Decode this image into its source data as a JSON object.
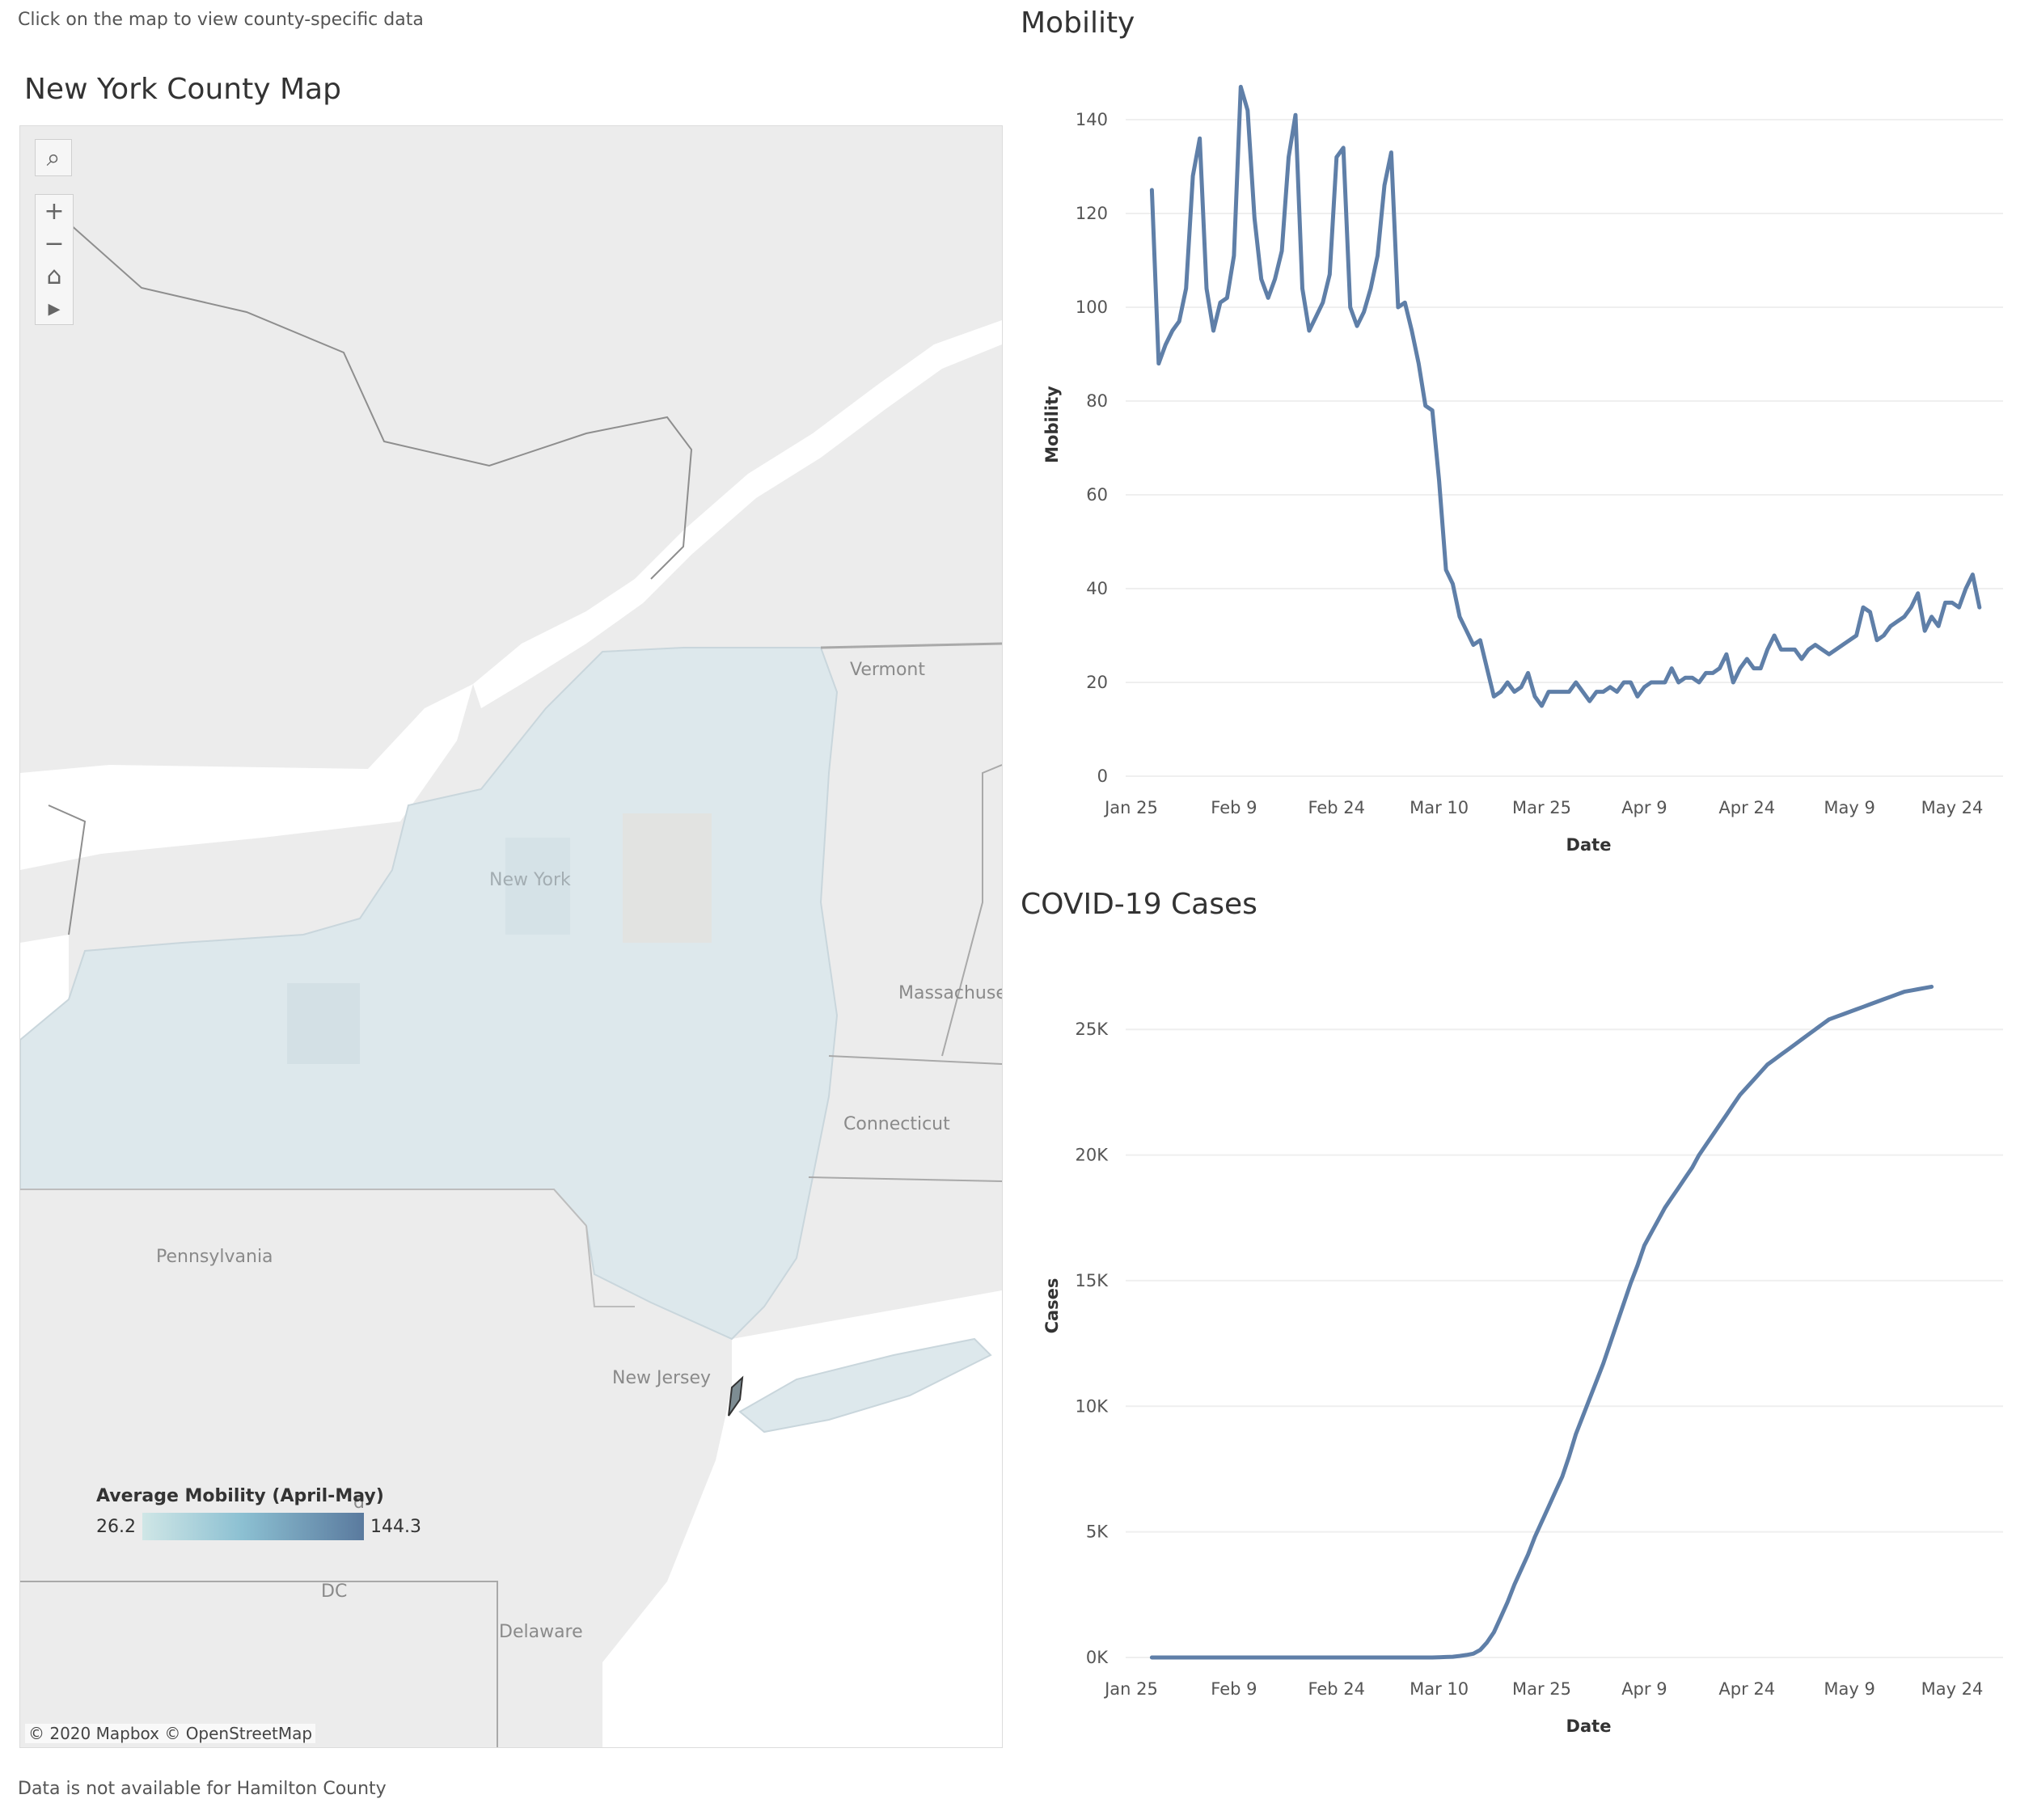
{
  "header": {
    "instruction": "Click on the map to view county-specific data",
    "map_title": "New York County Map",
    "footnote": "Data is not available for Hamilton County"
  },
  "map": {
    "toolbar": [
      {
        "name": "search-icon",
        "glyph": "⌕"
      },
      {
        "name": "zoom-in-icon",
        "glyph": "+"
      },
      {
        "name": "zoom-out-icon",
        "glyph": "−"
      },
      {
        "name": "home-icon",
        "glyph": "⌂"
      },
      {
        "name": "play-icon",
        "glyph": "▸"
      }
    ],
    "labels": {
      "vermont": "Vermont",
      "new_york": "New York",
      "massachusetts": "Massachuse",
      "connecticut": "Connecticut",
      "pennsylvania": "Pennsylvania",
      "new_jersey": "New Jersey",
      "maryland": "d",
      "dc": "DC",
      "delaware": "Delaware"
    },
    "legend": {
      "title": "Average Mobility (April-May)",
      "min": "26.2",
      "max": "144.3"
    },
    "attribution": "© 2020 Mapbox  © OpenStreetMap",
    "colors": {
      "water": "#ffffff",
      "land": "#ececec",
      "ny_fill": "#dde8ec",
      "line_color": "#5f7fa8"
    }
  },
  "mobility_chart": {
    "title": "Mobility",
    "chart_data": {
      "type": "line",
      "xlabel": "Date",
      "ylabel": "Mobility",
      "x_ticks": [
        "Jan 25",
        "Feb 9",
        "Feb 24",
        "Mar 10",
        "Mar 25",
        "Apr 9",
        "Apr 24",
        "May 9",
        "May 24"
      ],
      "y_ticks": [
        "0",
        "20",
        "40",
        "60",
        "80",
        "100",
        "120",
        "140"
      ],
      "ylim": [
        0,
        150
      ],
      "x_start": "Jan 28",
      "values": [
        125,
        88,
        92,
        95,
        97,
        104,
        128,
        136,
        104,
        95,
        101,
        102,
        111,
        147,
        142,
        119,
        106,
        102,
        106,
        112,
        132,
        141,
        104,
        95,
        98,
        101,
        107,
        132,
        134,
        100,
        96,
        99,
        104,
        111,
        126,
        133,
        100,
        101,
        95,
        88,
        79,
        78,
        63,
        44,
        41,
        34,
        31,
        28,
        29,
        23,
        17,
        18,
        20,
        18,
        19,
        22,
        17,
        15,
        18,
        18,
        18,
        18,
        20,
        18,
        16,
        18,
        18,
        19,
        18,
        20,
        20,
        17,
        19,
        20,
        20,
        20,
        23,
        20,
        21,
        21,
        20,
        22,
        22,
        23,
        26,
        20,
        23,
        25,
        23,
        23,
        27,
        30,
        27,
        27,
        27,
        25,
        27,
        28,
        27,
        26,
        27,
        28,
        29,
        30,
        36,
        35,
        29,
        30,
        32,
        33,
        34,
        36,
        39,
        31,
        34,
        32,
        37,
        37,
        36,
        40,
        43,
        36
      ]
    }
  },
  "covid_chart": {
    "title": "COVID-19 Cases",
    "chart_data": {
      "type": "line",
      "xlabel": "Date",
      "ylabel": "Cases",
      "x_ticks": [
        "Jan 25",
        "Feb 9",
        "Feb 24",
        "Mar 10",
        "Mar 25",
        "Apr 9",
        "Apr 24",
        "May 9",
        "May 24"
      ],
      "y_ticks": [
        "0K",
        "5K",
        "10K",
        "15K",
        "20K",
        "25K"
      ],
      "ylim": [
        0,
        28000
      ],
      "x_start": "Jan 28",
      "values": [
        0,
        0,
        0,
        0,
        0,
        0,
        0,
        0,
        0,
        0,
        0,
        0,
        0,
        0,
        0,
        0,
        0,
        0,
        0,
        0,
        0,
        0,
        0,
        0,
        0,
        0,
        0,
        0,
        0,
        0,
        0,
        0,
        0,
        0,
        0,
        0,
        0,
        0,
        0,
        0,
        0,
        0,
        10,
        20,
        30,
        60,
        100,
        150,
        300,
        600,
        1000,
        1600,
        2200,
        2900,
        3500,
        4100,
        4800,
        5400,
        6000,
        6600,
        7200,
        8000,
        8900,
        9600,
        10300,
        11000,
        11700,
        12500,
        13300,
        14100,
        14900,
        15600,
        16400,
        16900,
        17400,
        17900,
        18300,
        18700,
        19100,
        19500,
        20000,
        20400,
        20800,
        21200,
        21600,
        22000,
        22400,
        22700,
        23000,
        23300,
        23600,
        23800,
        24000,
        24200,
        24400,
        24600,
        24800,
        25000,
        25200,
        25400,
        25500,
        25600,
        25700,
        25800,
        25900,
        26000,
        26100,
        26200,
        26300,
        26400,
        26500,
        26550,
        26600,
        26650,
        26700
      ]
    }
  }
}
